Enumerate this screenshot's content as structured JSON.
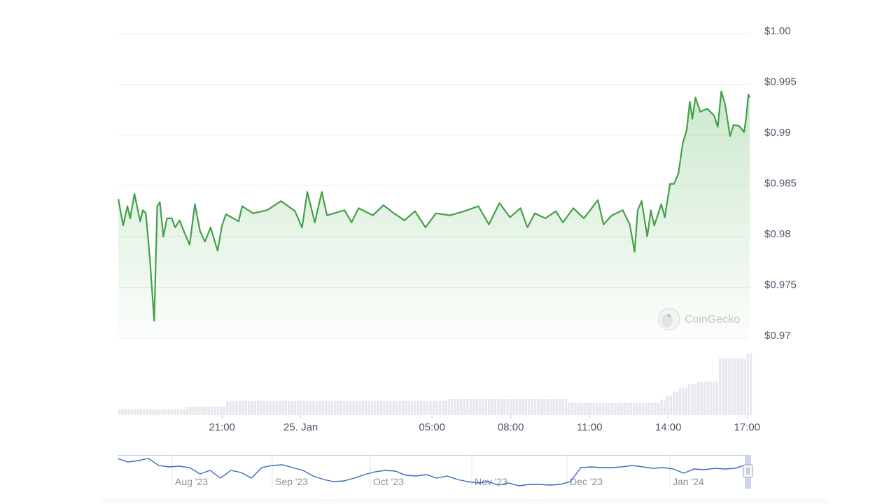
{
  "chart_data": {
    "type": "line",
    "date": "2024-01-24/25",
    "y_ticks": [
      "$1.00",
      "$0.995",
      "$0.99",
      "$0.985",
      "$0.98",
      "$0.975",
      "$0.97"
    ],
    "y_tick_values": [
      1.0,
      0.995,
      0.99,
      0.985,
      0.98,
      0.975,
      0.97
    ],
    "ylim": [
      0.97,
      1.0
    ],
    "x_ticks": [
      {
        "label": "21:00",
        "time": "2024-01-24T21:00"
      },
      {
        "label": "25. Jan",
        "time": "2024-01-25T00:00"
      },
      {
        "label": "05:00",
        "time": "2024-01-25T05:00"
      },
      {
        "label": "08:00",
        "time": "2024-01-25T08:00"
      },
      {
        "label": "11:00",
        "time": "2024-01-25T11:00"
      },
      {
        "label": "14:00",
        "time": "2024-01-25T14:00"
      },
      {
        "label": "17:00",
        "time": "2024-01-25T17:00"
      }
    ],
    "xlim": [
      "2024-01-24T17:03",
      "2024-01-25T17:06"
    ],
    "grid": true,
    "colors": {
      "line": "#43a047",
      "fill": "#4caf50",
      "volume": "#e6e8ee",
      "navigator": "#3b66c4"
    },
    "watermark": "CoinGecko",
    "series": [
      {
        "times": [
          "24T17:03",
          "24T17:14",
          "24T17:24",
          "24T17:30",
          "24T17:40",
          "24T17:53",
          "24T17:59",
          "24T18:06",
          "24T18:15",
          "24T18:25",
          "24T18:32",
          "24T18:38",
          "24T18:46",
          "24T18:54",
          "24T19:05",
          "24T19:13",
          "24T19:23",
          "24T19:33",
          "24T19:46",
          "24T19:58",
          "24T20:10",
          "24T20:21",
          "24T20:34",
          "24T20:50",
          "24T21:00",
          "24T21:09",
          "24T21:38",
          "24T21:46",
          "24T22:11",
          "24T22:43",
          "24T23:15",
          "24T23:47",
          "25T00:03",
          "25T00:15",
          "25T00:32",
          "25T00:48",
          "25T01:00",
          "25T01:40",
          "25T01:56",
          "25T02:12",
          "25T02:45",
          "25T03:09",
          "25T03:33",
          "25T03:57",
          "25T04:21",
          "25T04:45",
          "25T05:09",
          "25T05:41",
          "25T06:14",
          "25T06:46",
          "25T07:10",
          "25T07:34",
          "25T07:58",
          "25T08:22",
          "25T08:38",
          "25T08:55",
          "25T09:19",
          "25T09:43",
          "25T09:59",
          "25T10:23",
          "25T10:47",
          "25T11:19",
          "25T11:32",
          "25T11:51",
          "25T12:16",
          "25T12:32",
          "25T12:43",
          "25T12:50",
          "25T12:59",
          "25T13:12",
          "25T13:20",
          "25T13:28",
          "25T13:44",
          "25T13:52",
          "25T14:04",
          "25T14:13",
          "25T14:23",
          "25T14:33",
          "25T14:42",
          "25T14:49",
          "25T14:55",
          "25T15:02",
          "25T15:13",
          "25T15:29",
          "25T15:45",
          "25T15:53",
          "25T16:01",
          "25T16:10",
          "25T16:21",
          "25T16:29",
          "25T16:42",
          "25T16:53",
          "25T16:58",
          "25T17:03",
          "25T17:06"
        ],
        "values": [
          0.9837,
          0.9811,
          0.983,
          0.9818,
          0.9842,
          0.9815,
          0.9826,
          0.9823,
          0.9779,
          0.9717,
          0.983,
          0.9834,
          0.98,
          0.9818,
          0.9818,
          0.9809,
          0.9816,
          0.9805,
          0.9792,
          0.9832,
          0.9805,
          0.9795,
          0.9809,
          0.9786,
          0.9811,
          0.9822,
          0.9815,
          0.983,
          0.9823,
          0.9826,
          0.9835,
          0.9825,
          0.9809,
          0.9844,
          0.9814,
          0.9844,
          0.9821,
          0.9826,
          0.9814,
          0.9828,
          0.9821,
          0.9831,
          0.9823,
          0.9816,
          0.9825,
          0.9809,
          0.9823,
          0.9821,
          0.9825,
          0.983,
          0.9812,
          0.9833,
          0.9819,
          0.9828,
          0.9809,
          0.9823,
          0.9818,
          0.9825,
          0.9814,
          0.9828,
          0.9818,
          0.9836,
          0.9812,
          0.9821,
          0.9826,
          0.9812,
          0.9785,
          0.9826,
          0.9835,
          0.98,
          0.9826,
          0.9811,
          0.9832,
          0.9819,
          0.9852,
          0.9852,
          0.9862,
          0.9892,
          0.9905,
          0.9933,
          0.9916,
          0.9937,
          0.9923,
          0.9926,
          0.9919,
          0.9908,
          0.9943,
          0.993,
          0.9899,
          0.991,
          0.9909,
          0.9903,
          0.9917,
          0.994,
          0.9937
        ]
      }
    ],
    "volume_relative": {
      "times": [
        "24T17:03",
        "24T19:33",
        "24T21:09",
        "25T05:30",
        "25T10:07",
        "25T13:40",
        "25T13:50",
        "25T14:05",
        "25T14:20",
        "25T14:40",
        "25T15:00",
        "25T15:55",
        "25T16:55"
      ],
      "values": [
        9,
        13,
        22,
        25,
        19,
        24,
        30,
        36,
        42,
        48,
        52,
        88,
        96
      ]
    },
    "navigator": {
      "labels": [
        "Aug '23",
        "Sep '23",
        "Oct '23",
        "Nov '23",
        "Dec '23",
        "Jan '24"
      ],
      "values_relative": [
        42,
        37,
        39,
        42,
        32,
        30,
        31,
        29,
        20,
        25,
        14,
        25,
        22,
        14,
        29,
        32,
        33,
        29,
        25,
        17,
        12,
        9,
        10,
        14,
        19,
        23,
        25,
        24,
        18,
        17,
        19,
        14,
        17,
        12,
        9,
        7,
        9,
        4,
        7,
        3,
        5,
        5,
        4,
        5,
        9,
        29,
        30,
        29,
        29,
        30,
        32,
        30,
        28,
        29,
        27,
        21,
        27,
        26,
        28,
        27,
        28,
        33
      ]
    }
  }
}
